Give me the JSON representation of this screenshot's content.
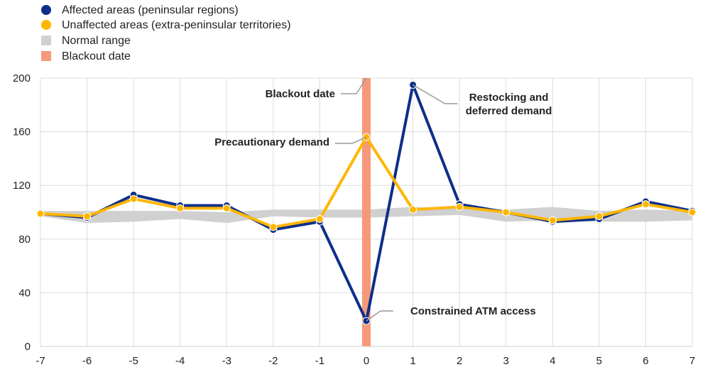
{
  "chart_data": {
    "type": "line",
    "x": [
      -7,
      -6,
      -5,
      -4,
      -3,
      -2,
      -1,
      0,
      1,
      2,
      3,
      4,
      5,
      6,
      7
    ],
    "ylim": [
      0,
      200
    ],
    "yticks": [
      0,
      40,
      80,
      120,
      160,
      200
    ],
    "grid": true,
    "legend_position": "top-left",
    "series": [
      {
        "name": "Affected areas (peninsular regions)",
        "color": "#0d2e8a",
        "values": [
          99,
          96,
          113,
          105,
          105,
          87,
          93,
          19,
          195,
          106,
          100,
          93,
          95,
          108,
          101
        ]
      },
      {
        "name": "Unaffected areas (extra-peninsular territories)",
        "color": "#ffb600",
        "values": [
          99,
          97,
          110,
          103,
          103,
          89,
          95,
          156,
          102,
          104,
          100,
          94,
          97,
          106,
          100
        ]
      }
    ],
    "normal_range": {
      "name": "Normal range",
      "color": "#d0d0d0",
      "lower": [
        97,
        92,
        93,
        95,
        92,
        97,
        96,
        96,
        97,
        98,
        93,
        94,
        93,
        93,
        94
      ],
      "upper": [
        101,
        101,
        101,
        101,
        100,
        102,
        102,
        102,
        104,
        103,
        102,
        104,
        101,
        102,
        101
      ]
    },
    "blackout": {
      "name": "Blackout date",
      "x": 0,
      "color": "#f5997a"
    },
    "annotations": [
      {
        "text": "Blackout date",
        "x": 0,
        "y": 200
      },
      {
        "text": "Precautionary demand",
        "x": 0,
        "y": 156
      },
      {
        "text": "Restocking and",
        "x": 1,
        "y": 195
      },
      {
        "text": "deferred demand",
        "x": 1,
        "y": 195
      },
      {
        "text": "Constrained ATM access",
        "x": 0,
        "y": 19
      }
    ]
  }
}
